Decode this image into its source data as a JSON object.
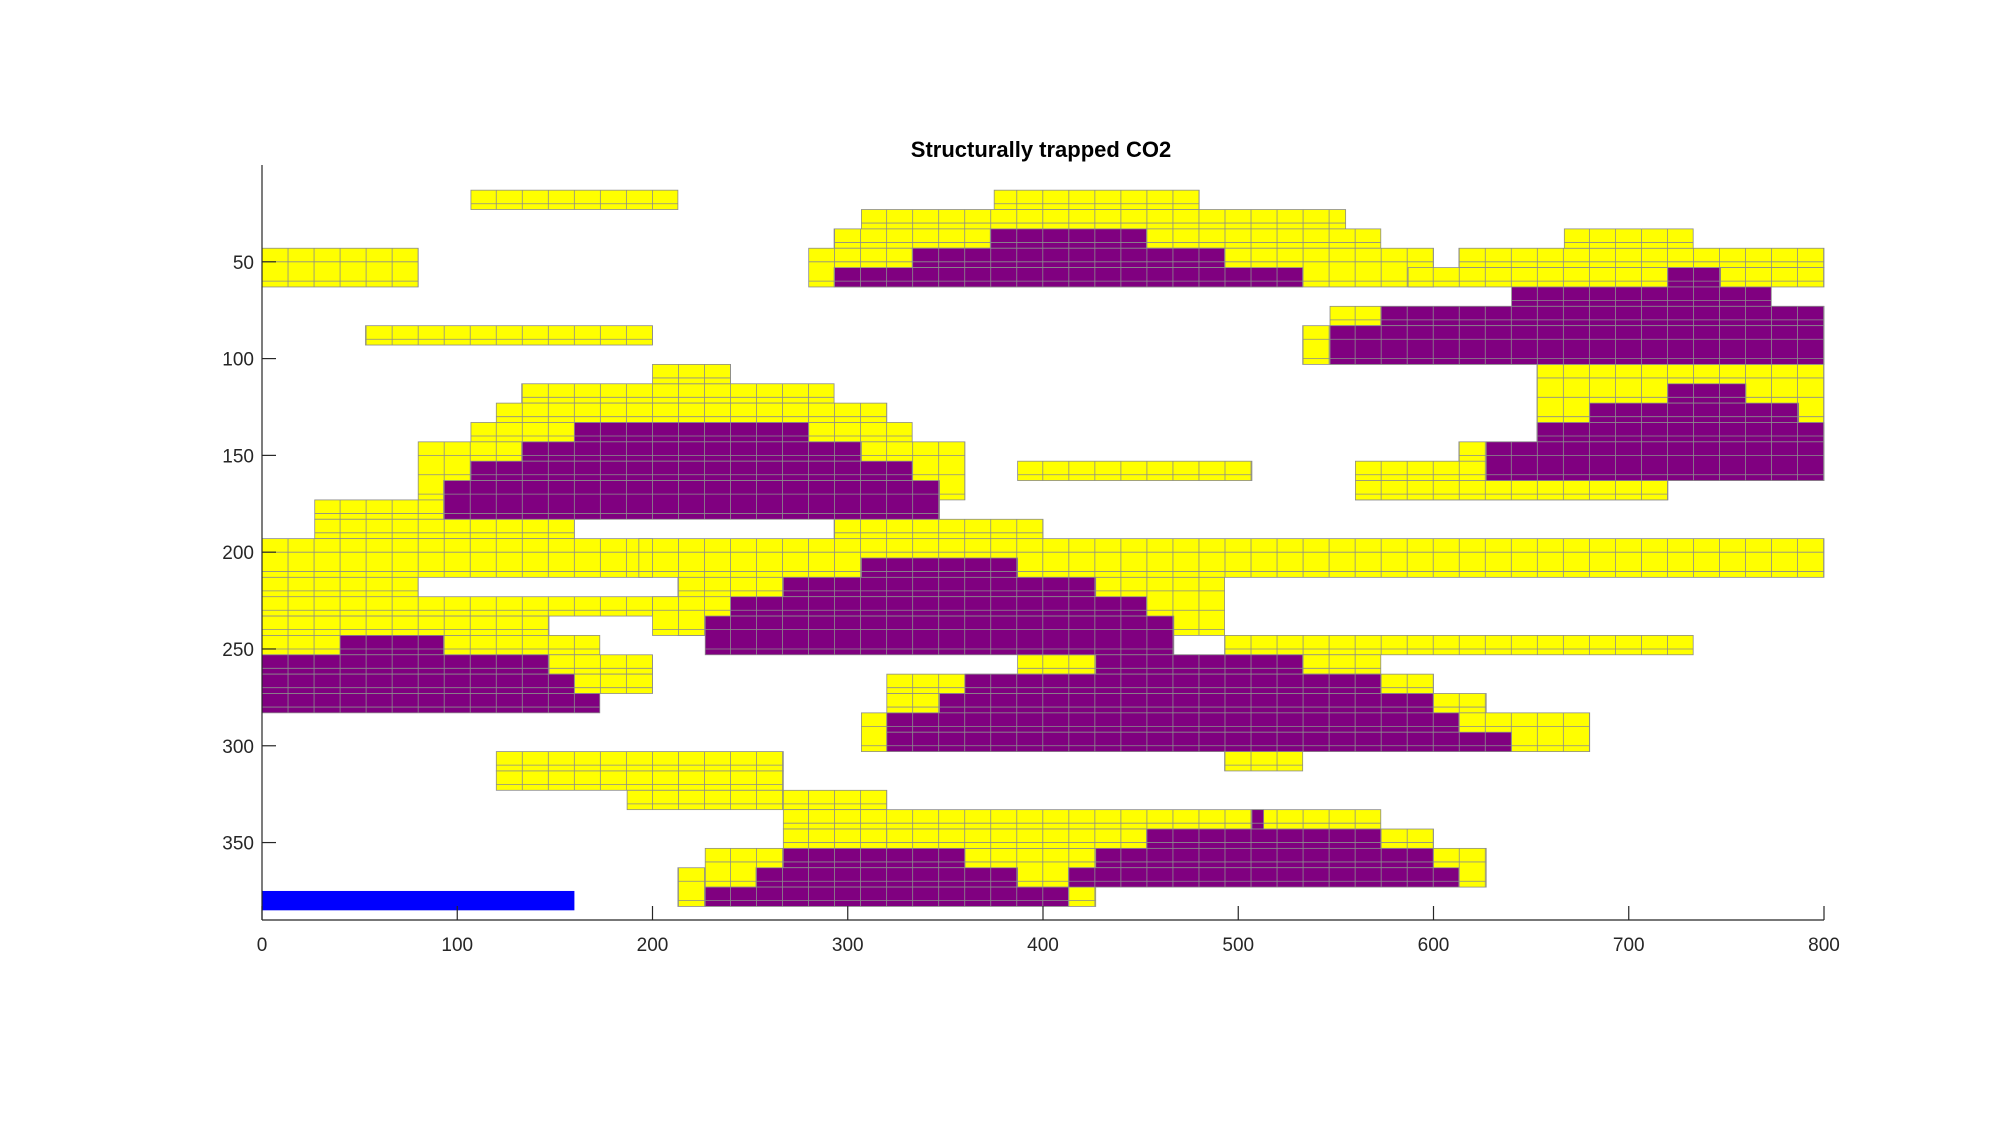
{
  "chart_data": {
    "type": "heatmap",
    "title": "Structurally trapped CO2",
    "xlim": [
      0,
      800
    ],
    "ylim": [
      390,
      0
    ],
    "y_reversed": true,
    "x_ticks": [
      0,
      100,
      200,
      300,
      400,
      500,
      600,
      700,
      800
    ],
    "y_ticks": [
      50,
      100,
      150,
      200,
      250,
      300,
      350
    ],
    "cell_size": [
      13.33,
      10
    ],
    "colors": {
      "yellow": "#ffff00",
      "purple": "#800080",
      "blue": "#0000ff",
      "cell_edge": "#8c8c8c"
    },
    "series": [
      {
        "name": "yellow",
        "rects": [
          [
            107,
            213,
            13,
            23
          ],
          [
            375,
            480,
            13,
            23
          ],
          [
            307,
            555,
            23,
            33
          ],
          [
            293,
            573,
            33,
            43
          ],
          [
            0,
            80,
            43,
            63
          ],
          [
            280,
            600,
            43,
            63
          ],
          [
            613,
            800,
            43,
            53
          ],
          [
            587,
            800,
            53,
            63
          ],
          [
            53,
            200,
            83,
            93
          ],
          [
            547,
            800,
            73,
            83
          ],
          [
            533,
            800,
            83,
            103
          ],
          [
            667,
            733,
            33,
            43
          ],
          [
            133,
            293,
            113,
            123
          ],
          [
            200,
            240,
            103,
            113
          ],
          [
            120,
            320,
            123,
            133
          ],
          [
            107,
            333,
            133,
            143
          ],
          [
            80,
            360,
            143,
            173
          ],
          [
            27,
            173,
            173,
            183
          ],
          [
            27,
            160,
            183,
            193
          ],
          [
            0,
            200,
            193,
            213
          ],
          [
            0,
            80,
            213,
            243
          ],
          [
            0,
            227,
            223,
            233
          ],
          [
            0,
            147,
            233,
            243
          ],
          [
            0,
            173,
            243,
            253
          ],
          [
            120,
            200,
            253,
            263
          ],
          [
            160,
            200,
            263,
            273
          ],
          [
            193,
            800,
            193,
            213
          ],
          [
            293,
            400,
            183,
            193
          ],
          [
            213,
            493,
            213,
            243
          ],
          [
            200,
            240,
            223,
            243
          ],
          [
            493,
            733,
            243,
            253
          ],
          [
            387,
            573,
            253,
            263
          ],
          [
            320,
            600,
            263,
            273
          ],
          [
            320,
            627,
            273,
            283
          ],
          [
            307,
            680,
            283,
            303
          ],
          [
            120,
            267,
            303,
            313
          ],
          [
            120,
            267,
            313,
            323
          ],
          [
            187,
            267,
            323,
            333
          ],
          [
            267,
            320,
            323,
            333
          ],
          [
            267,
            573,
            333,
            343
          ],
          [
            267,
            600,
            343,
            353
          ],
          [
            227,
            627,
            353,
            373
          ],
          [
            213,
            227,
            363,
            383
          ],
          [
            413,
            427,
            363,
            383
          ],
          [
            387,
            507,
            153,
            163
          ],
          [
            560,
            720,
            163,
            173
          ],
          [
            653,
            800,
            103,
            143
          ],
          [
            560,
            720,
            163,
            173
          ],
          [
            493,
            533,
            293,
            313
          ],
          [
            320,
            480,
            343,
            353
          ],
          [
            613,
            800,
            143,
            163
          ],
          [
            560,
            667,
            153,
            163
          ]
        ]
      },
      {
        "name": "purple",
        "rects": [
          [
            373,
            453,
            33,
            43
          ],
          [
            333,
            493,
            43,
            53
          ],
          [
            293,
            533,
            53,
            63
          ],
          [
            720,
            747,
            53,
            63
          ],
          [
            640,
            773,
            63,
            73
          ],
          [
            573,
            800,
            73,
            83
          ],
          [
            547,
            800,
            83,
            103
          ],
          [
            720,
            760,
            113,
            123
          ],
          [
            680,
            787,
            123,
            133
          ],
          [
            653,
            800,
            133,
            143
          ],
          [
            627,
            800,
            143,
            163
          ],
          [
            160,
            280,
            133,
            143
          ],
          [
            133,
            307,
            143,
            153
          ],
          [
            107,
            333,
            153,
            163
          ],
          [
            93,
            347,
            163,
            183
          ],
          [
            307,
            387,
            203,
            213
          ],
          [
            267,
            427,
            213,
            223
          ],
          [
            240,
            453,
            223,
            233
          ],
          [
            227,
            467,
            233,
            253
          ],
          [
            40,
            93,
            243,
            253
          ],
          [
            0,
            147,
            253,
            263
          ],
          [
            0,
            160,
            263,
            273
          ],
          [
            0,
            173,
            273,
            283
          ],
          [
            427,
            533,
            253,
            263
          ],
          [
            360,
            573,
            263,
            273
          ],
          [
            347,
            600,
            273,
            283
          ],
          [
            320,
            613,
            283,
            293
          ],
          [
            320,
            640,
            293,
            303
          ],
          [
            507,
            513,
            333,
            343
          ],
          [
            453,
            573,
            343,
            353
          ],
          [
            427,
            600,
            353,
            363
          ],
          [
            267,
            360,
            353,
            363
          ],
          [
            253,
            387,
            363,
            373
          ],
          [
            227,
            413,
            373,
            383
          ],
          [
            413,
            613,
            363,
            373
          ]
        ]
      },
      {
        "name": "blue",
        "rects": [
          [
            0,
            160,
            375,
            385
          ]
        ]
      }
    ]
  }
}
